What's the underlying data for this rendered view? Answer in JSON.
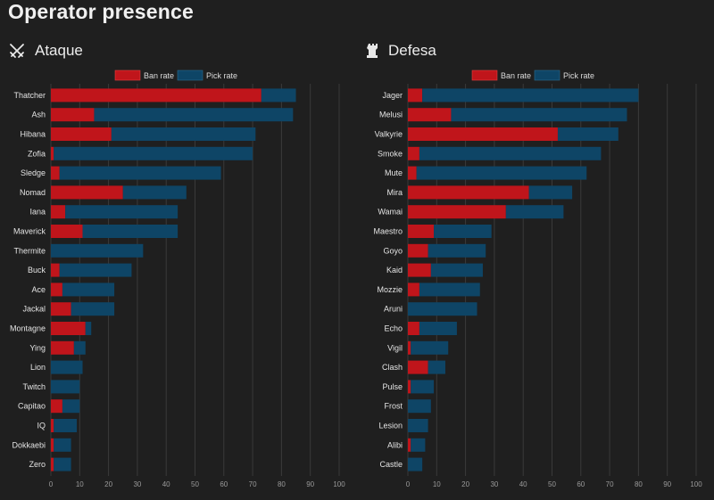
{
  "title": "Operator presence",
  "icons": {
    "attack": "crossed-swords-icon",
    "defense": "rook-tower-icon"
  },
  "colors": {
    "ban": "#c0151b",
    "pick": "#0e4566",
    "background": "#1f1f1f"
  },
  "chart_data": [
    {
      "type": "bar",
      "orientation": "horizontal",
      "stacked": true,
      "title": "Ataque",
      "legend": [
        "Ban rate",
        "Pick rate"
      ],
      "legend_position": "top-center",
      "xlim": [
        0,
        100
      ],
      "xticks": [
        0,
        10,
        20,
        30,
        40,
        50,
        60,
        70,
        80,
        90,
        100
      ],
      "grid": true,
      "categories": [
        "Thatcher",
        "Ash",
        "Hibana",
        "Zofia",
        "Sledge",
        "Nomad",
        "Iana",
        "Maverick",
        "Thermite",
        "Buck",
        "Ace",
        "Jackal",
        "Montagne",
        "Ying",
        "Lion",
        "Twitch",
        "Capitao",
        "IQ",
        "Dokkaebi",
        "Zero"
      ],
      "series": [
        {
          "name": "Ban rate",
          "values": [
            73,
            15,
            21,
            1,
            3,
            25,
            5,
            11,
            0,
            3,
            4,
            7,
            12,
            8,
            0,
            0,
            4,
            1,
            1,
            1
          ]
        },
        {
          "name": "Pick rate",
          "values": [
            12,
            69,
            50,
            69,
            56,
            22,
            39,
            33,
            32,
            25,
            18,
            15,
            2,
            4,
            11,
            10,
            6,
            8,
            6,
            6
          ]
        }
      ]
    },
    {
      "type": "bar",
      "orientation": "horizontal",
      "stacked": true,
      "title": "Defesa",
      "legend": [
        "Ban rate",
        "Pick rate"
      ],
      "legend_position": "top-center",
      "xlim": [
        0,
        100
      ],
      "xticks": [
        0,
        10,
        20,
        30,
        40,
        50,
        60,
        70,
        80,
        90,
        100
      ],
      "grid": true,
      "categories": [
        "Jager",
        "Melusi",
        "Valkyrie",
        "Smoke",
        "Mute",
        "Mira",
        "Wamai",
        "Maestro",
        "Goyo",
        "Kaid",
        "Mozzie",
        "Aruni",
        "Echo",
        "Vigil",
        "Clash",
        "Pulse",
        "Frost",
        "Lesion",
        "Alibi",
        "Castle"
      ],
      "series": [
        {
          "name": "Ban rate",
          "values": [
            5,
            15,
            52,
            4,
            3,
            42,
            34,
            9,
            7,
            8,
            4,
            0,
            4,
            1,
            7,
            1,
            0,
            0,
            1,
            0
          ]
        },
        {
          "name": "Pick rate",
          "values": [
            75,
            61,
            21,
            63,
            59,
            15,
            20,
            20,
            20,
            18,
            21,
            24,
            13,
            13,
            6,
            8,
            8,
            7,
            5,
            5
          ]
        }
      ]
    }
  ]
}
